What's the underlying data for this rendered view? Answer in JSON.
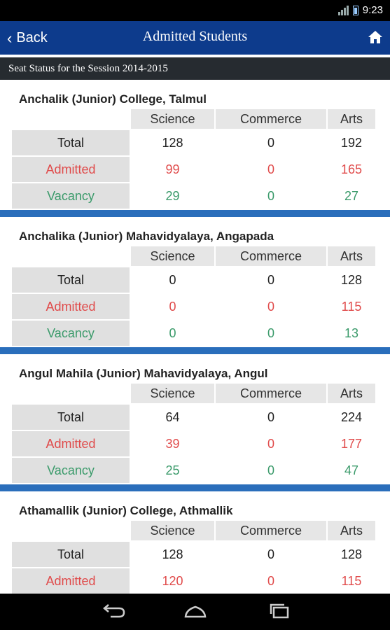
{
  "status_bar": {
    "time": "9:23"
  },
  "app_bar": {
    "back_label": "Back",
    "title": "Admitted Students"
  },
  "session_header": "Seat Status for the Session 2014-2015",
  "columns": [
    "Science",
    "Commerce",
    "Arts"
  ],
  "row_labels": [
    "Total",
    "Admitted",
    "Vacancy"
  ],
  "colleges": [
    {
      "name": "Anchalik (Junior) College, Talmul",
      "total": [
        "128",
        "0",
        "192"
      ],
      "admitted": [
        "99",
        "0",
        "165"
      ],
      "vacancy": [
        "29",
        "0",
        "27"
      ]
    },
    {
      "name": "Anchalika (Junior) Mahavidyalaya, Angapada",
      "total": [
        "0",
        "0",
        "128"
      ],
      "admitted": [
        "0",
        "0",
        "115"
      ],
      "vacancy": [
        "0",
        "0",
        "13"
      ]
    },
    {
      "name": "Angul Mahila (Junior) Mahavidyalaya, Angul",
      "total": [
        "64",
        "0",
        "224"
      ],
      "admitted": [
        "39",
        "0",
        "177"
      ],
      "vacancy": [
        "25",
        "0",
        "47"
      ]
    },
    {
      "name": "Athamallik (Junior) College, Athmallik",
      "total": [
        "128",
        "0",
        "128"
      ],
      "admitted": [
        "120",
        "0",
        "115"
      ],
      "vacancy": [
        "",
        "",
        ""
      ]
    }
  ],
  "colors": {
    "app_bar": "#0d3b8c",
    "divider": "#2a6ebb",
    "admitted": "#e04b4b",
    "vacancy": "#3a9a6a"
  }
}
